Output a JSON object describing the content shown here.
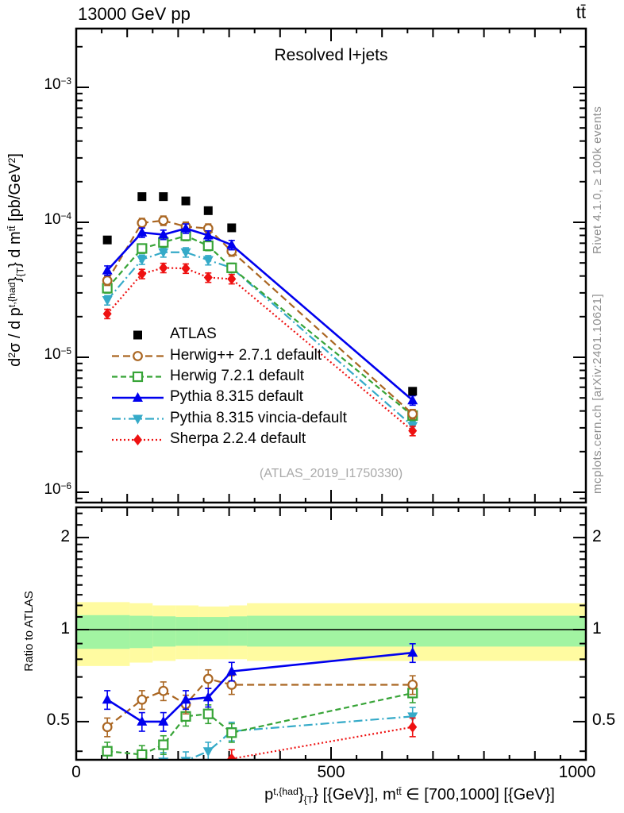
{
  "header": {
    "left": "13000 GeV pp",
    "right": "tt̄"
  },
  "panel_title": "Resolved l+jets",
  "watermark": "(ATLAS_2019_I1750330)",
  "side_notes": {
    "top": "Rivet 4.1.0, ≥ 100k events",
    "bottom": "mcplots.cern.ch [arXiv:2401.10621]"
  },
  "axes": {
    "y_label_rich": [
      [
        "n",
        "d"
      ],
      [
        "sup",
        "2"
      ],
      [
        "n",
        "σ / d p"
      ],
      [
        "sup",
        "t,{had"
      ],
      [
        "n",
        "}"
      ],
      [
        "sub",
        "{T"
      ],
      [
        "n",
        "} d m"
      ],
      [
        "sup",
        "tt̄"
      ],
      [
        "n",
        " [pb/GeV"
      ],
      [
        "sup",
        "2"
      ],
      [
        "n",
        "]"
      ]
    ],
    "x_label_rich": [
      [
        "n",
        "p"
      ],
      [
        "sup",
        "t,{had"
      ],
      [
        "n",
        "}"
      ],
      [
        "sub",
        "{T"
      ],
      [
        "n",
        "} [{GeV}], m"
      ],
      [
        "sup",
        "tt̄"
      ],
      [
        "n",
        " ∈ [700,1000] [{GeV}]"
      ]
    ],
    "y_ticks": [
      {
        "label_rich": [
          [
            "n",
            "10"
          ],
          [
            "sup",
            "−3"
          ]
        ]
      },
      {
        "label_rich": [
          [
            "n",
            "10"
          ],
          [
            "sup",
            "−4"
          ]
        ]
      },
      {
        "label_rich": [
          [
            "n",
            "10"
          ],
          [
            "sup",
            "−5"
          ]
        ]
      },
      {
        "label_rich": [
          [
            "n",
            "10"
          ],
          [
            "sup",
            "−6"
          ]
        ]
      }
    ],
    "x_ticks": [
      "0",
      "500",
      "1000"
    ],
    "ratio_ticks": [
      "2",
      "1",
      "0.5"
    ]
  },
  "ratio_panel_label": "Ratio to ATLAS",
  "chart_data": {
    "type": "line",
    "title": "Resolved l+jets",
    "xlabel": "pT^{t,had} [GeV], m^{tt} in [700,1000] [GeV]",
    "ylabel": "d2sigma / d pT^{t,had} d m^{tt} [pb/GeV2]",
    "x": [
      61,
      129,
      171,
      215,
      259,
      305,
      660
    ],
    "xlim": [
      0,
      1000
    ],
    "main_axis": {
      "scale": "log",
      "ylim": [
        8.4e-07,
        0.0026
      ],
      "label_decades": [
        -3,
        -4,
        -5,
        -6
      ]
    },
    "ratio_axis": {
      "scale": "log",
      "ylim": [
        0.375,
        2.54
      ],
      "labeled_ticks": [
        2,
        1,
        0.5
      ]
    },
    "series": [
      {
        "name": "ATLAS",
        "color": "#000000",
        "marker": "square",
        "line": "none",
        "values": [
          7.4e-05,
          0.000155,
          0.000155,
          0.000144,
          0.000122,
          9.1e-05,
          5.6e-06
        ],
        "ratio": null
      },
      {
        "name": "Herwig++ 2.7.1 default",
        "color": "#aa6622",
        "marker": "circle-open",
        "line": "dash",
        "values": [
          3.7e-05,
          9.9e-05,
          0.000103,
          9.3e-05,
          9e-05,
          6.1e-05,
          3.8e-06
        ],
        "ratio": [
          0.48,
          0.59,
          0.63,
          0.57,
          0.69,
          0.66,
          0.66
        ]
      },
      {
        "name": "Herwig 7.2.1 default",
        "color": "#37a437",
        "marker": "square-open",
        "line": "dash2",
        "values": [
          3.25e-05,
          6.4e-05,
          7.1e-05,
          7.95e-05,
          6.7e-05,
          4.6e-05,
          3.7e-06
        ],
        "ratio": [
          0.4,
          0.39,
          0.42,
          0.52,
          0.53,
          0.46,
          0.62
        ]
      },
      {
        "name": "Pythia 8.315 default",
        "color": "#0000ee",
        "marker": "triangle-up",
        "line": "solid",
        "values": [
          4.4e-05,
          8.4e-05,
          8.1e-05,
          9e-05,
          8e-05,
          6.8e-05,
          4.8e-06
        ],
        "ratio": [
          0.59,
          0.5,
          0.5,
          0.59,
          0.6,
          0.73,
          0.84
        ]
      },
      {
        "name": "Pythia 8.315 vincia-default",
        "color": "#35aac8",
        "marker": "triangle-down",
        "line": "dashdot",
        "values": [
          2.65e-05,
          5.3e-05,
          6e-05,
          6e-05,
          5.25e-05,
          4.6e-05,
          3.1e-06
        ],
        "ratio": [
          null,
          null,
          0.37,
          0.372,
          0.4,
          0.465,
          0.52
        ]
      },
      {
        "name": "Sherpa 2.2.4 default",
        "color": "#ee1111",
        "marker": "diamond",
        "line": "dot",
        "values": [
          2.1e-05,
          4.15e-05,
          4.6e-05,
          4.55e-05,
          3.9e-05,
          3.8e-05,
          2.85e-06
        ],
        "ratio": [
          null,
          null,
          null,
          null,
          null,
          0.378,
          0.48
        ]
      }
    ],
    "ratio_bands": {
      "yellow": {
        "color": "#fffba1",
        "segments": [
          [
            0,
            105,
            0.76,
            1.23
          ],
          [
            105,
            150,
            0.78,
            1.22
          ],
          [
            150,
            195,
            0.79,
            1.2
          ],
          [
            195,
            240,
            0.8,
            1.2
          ],
          [
            240,
            300,
            0.8,
            1.19
          ],
          [
            300,
            335,
            0.8,
            1.2
          ],
          [
            335,
            1000,
            0.79,
            1.22
          ]
        ]
      },
      "green": {
        "color": "#a2f4a2",
        "segments": [
          [
            0,
            105,
            0.865,
            1.115
          ],
          [
            105,
            150,
            0.87,
            1.11
          ],
          [
            150,
            195,
            0.88,
            1.105
          ],
          [
            195,
            240,
            0.885,
            1.1
          ],
          [
            240,
            300,
            0.885,
            1.1
          ],
          [
            300,
            335,
            0.885,
            1.105
          ],
          [
            335,
            1000,
            0.88,
            1.11
          ]
        ]
      }
    },
    "legend_position": "middle-left",
    "grid": false
  }
}
